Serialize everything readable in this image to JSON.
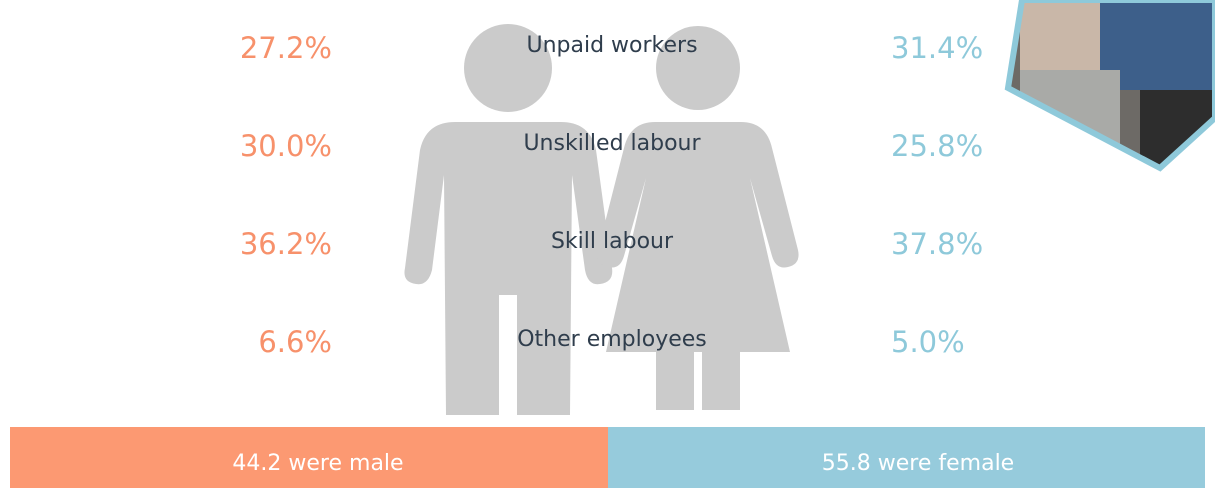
{
  "rows": [
    {
      "label": "Unpaid workers",
      "male": "27.2%",
      "female": "31.4%"
    },
    {
      "label": "Unskilled labour",
      "male": "30.0%",
      "female": "25.8%"
    },
    {
      "label": "Skill labour",
      "male": "36.2%",
      "female": "37.8%"
    },
    {
      "label": "Other employees",
      "male": "6.6%",
      "female": "5.0%"
    }
  ],
  "footer": {
    "male": "44.2 were male",
    "female": "55.8 were female"
  }
}
